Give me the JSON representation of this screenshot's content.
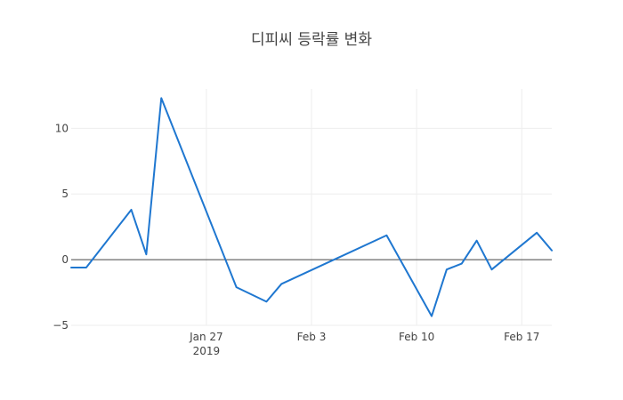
{
  "chart_data": {
    "type": "line",
    "title": "디피씨 등락률 변화",
    "xlabel": "",
    "ylabel": "",
    "x": [
      "2019-01-18",
      "2019-01-19",
      "2019-01-22",
      "2019-01-23",
      "2019-01-24",
      "2019-01-29",
      "2019-01-31",
      "2019-02-01",
      "2019-02-08",
      "2019-02-11",
      "2019-02-12",
      "2019-02-13",
      "2019-02-14",
      "2019-02-15",
      "2019-02-18",
      "2019-02-19"
    ],
    "series": [
      {
        "name": "",
        "color": "#1f77d0",
        "values": [
          -0.6,
          -0.6,
          3.8,
          0.4,
          12.3,
          -2.1,
          -3.2,
          -1.85,
          1.85,
          -4.3,
          -0.75,
          -0.3,
          1.45,
          -0.75,
          2.05,
          0.7
        ]
      }
    ],
    "xlim": [
      "2019-01-18",
      "2019-02-19"
    ],
    "ylim": [
      -5,
      13
    ],
    "x_ticks": [
      {
        "date": "2019-01-27",
        "label": "Jan 27",
        "sublabel": "2019"
      },
      {
        "date": "2019-02-03",
        "label": "Feb 3",
        "sublabel": ""
      },
      {
        "date": "2019-02-10",
        "label": "Feb 10",
        "sublabel": ""
      },
      {
        "date": "2019-02-17",
        "label": "Feb 17",
        "sublabel": ""
      }
    ],
    "y_ticks": [
      {
        "value": 10,
        "label": "10"
      },
      {
        "value": 5,
        "label": "5"
      },
      {
        "value": 0,
        "label": "0"
      },
      {
        "value": -5,
        "label": "−5"
      }
    ],
    "grid": true,
    "zero_line": true,
    "legend": "none",
    "colors": {
      "grid": "#eeeeee",
      "zero_line": "#444444",
      "text": "#444444"
    }
  }
}
